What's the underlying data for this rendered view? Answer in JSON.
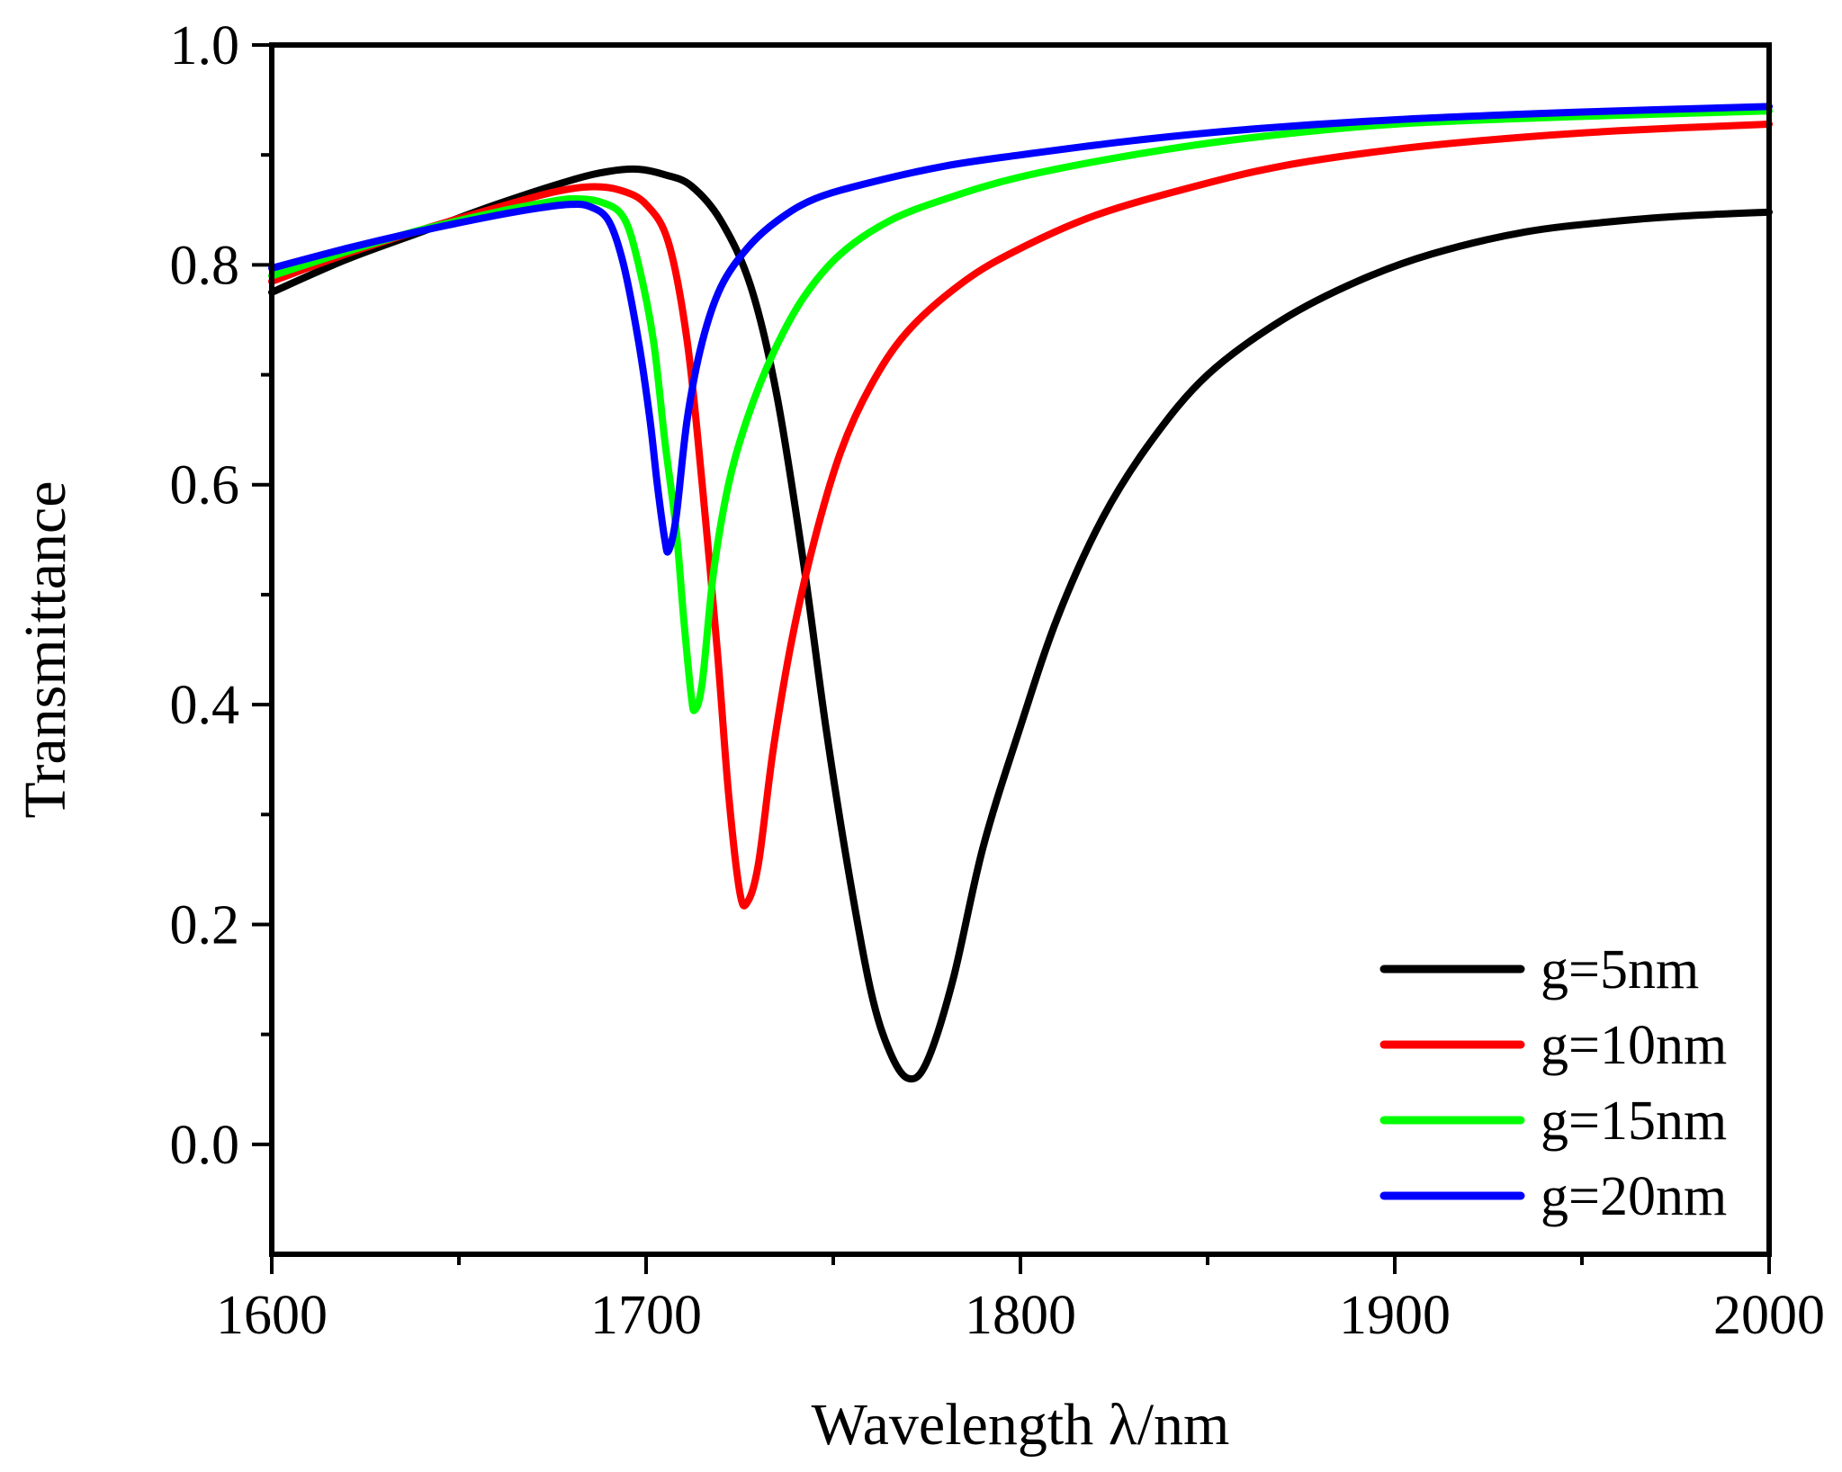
{
  "chart_data": {
    "type": "line",
    "title": "",
    "xlabel": "Wavelength λ/nm",
    "ylabel": "Transmittance",
    "xlim": [
      1600,
      2000
    ],
    "ylim": [
      -0.1,
      1.0
    ],
    "xticks": [
      1600,
      1700,
      1800,
      1900,
      2000
    ],
    "xtick_labels": [
      "1600",
      "1700",
      "1800",
      "1900",
      "2000"
    ],
    "xminor_step": 50,
    "yticks": [
      0.0,
      0.2,
      0.4,
      0.6,
      0.8,
      1.0
    ],
    "ytick_labels": [
      "0.0",
      "0.2",
      "0.4",
      "0.6",
      "0.8",
      "1.0"
    ],
    "yminor_step": 0.1,
    "grid": false,
    "legend_position": "bottom-right",
    "series": [
      {
        "name": "g=5nm",
        "color": "#000000",
        "points": [
          [
            1600,
            0.775
          ],
          [
            1620,
            0.805
          ],
          [
            1640,
            0.83
          ],
          [
            1660,
            0.855
          ],
          [
            1680,
            0.877
          ],
          [
            1690,
            0.885
          ],
          [
            1698,
            0.887
          ],
          [
            1705,
            0.882
          ],
          [
            1712,
            0.872
          ],
          [
            1720,
            0.84
          ],
          [
            1728,
            0.78
          ],
          [
            1735,
            0.68
          ],
          [
            1742,
            0.53
          ],
          [
            1748,
            0.38
          ],
          [
            1754,
            0.25
          ],
          [
            1760,
            0.14
          ],
          [
            1765,
            0.085
          ],
          [
            1770,
            0.06
          ],
          [
            1775,
            0.075
          ],
          [
            1782,
            0.15
          ],
          [
            1790,
            0.27
          ],
          [
            1800,
            0.38
          ],
          [
            1810,
            0.48
          ],
          [
            1822,
            0.57
          ],
          [
            1835,
            0.64
          ],
          [
            1850,
            0.7
          ],
          [
            1870,
            0.75
          ],
          [
            1890,
            0.785
          ],
          [
            1910,
            0.81
          ],
          [
            1935,
            0.83
          ],
          [
            1960,
            0.84
          ],
          [
            1980,
            0.845
          ],
          [
            2000,
            0.848
          ]
        ]
      },
      {
        "name": "g=10nm",
        "color": "#ff0000",
        "points": [
          [
            1600,
            0.785
          ],
          [
            1620,
            0.81
          ],
          [
            1640,
            0.832
          ],
          [
            1660,
            0.852
          ],
          [
            1675,
            0.866
          ],
          [
            1685,
            0.871
          ],
          [
            1693,
            0.868
          ],
          [
            1700,
            0.855
          ],
          [
            1706,
            0.82
          ],
          [
            1711,
            0.73
          ],
          [
            1715,
            0.6
          ],
          [
            1719,
            0.45
          ],
          [
            1722,
            0.32
          ],
          [
            1725,
            0.23
          ],
          [
            1727,
            0.22
          ],
          [
            1730,
            0.255
          ],
          [
            1734,
            0.36
          ],
          [
            1739,
            0.46
          ],
          [
            1745,
            0.55
          ],
          [
            1752,
            0.63
          ],
          [
            1760,
            0.69
          ],
          [
            1770,
            0.74
          ],
          [
            1785,
            0.785
          ],
          [
            1800,
            0.815
          ],
          [
            1820,
            0.845
          ],
          [
            1845,
            0.87
          ],
          [
            1870,
            0.89
          ],
          [
            1900,
            0.905
          ],
          [
            1930,
            0.915
          ],
          [
            1960,
            0.922
          ],
          [
            2000,
            0.928
          ]
        ]
      },
      {
        "name": "g=15nm",
        "color": "#00ff00",
        "points": [
          [
            1600,
            0.79
          ],
          [
            1620,
            0.812
          ],
          [
            1640,
            0.832
          ],
          [
            1660,
            0.848
          ],
          [
            1672,
            0.856
          ],
          [
            1680,
            0.86
          ],
          [
            1688,
            0.857
          ],
          [
            1694,
            0.843
          ],
          [
            1698,
            0.8
          ],
          [
            1702,
            0.73
          ],
          [
            1705,
            0.64
          ],
          [
            1708,
            0.56
          ],
          [
            1710,
            0.48
          ],
          [
            1712,
            0.41
          ],
          [
            1713,
            0.395
          ],
          [
            1715,
            0.42
          ],
          [
            1718,
            0.52
          ],
          [
            1722,
            0.6
          ],
          [
            1727,
            0.66
          ],
          [
            1734,
            0.72
          ],
          [
            1742,
            0.77
          ],
          [
            1752,
            0.81
          ],
          [
            1765,
            0.84
          ],
          [
            1780,
            0.86
          ],
          [
            1800,
            0.88
          ],
          [
            1830,
            0.9
          ],
          [
            1860,
            0.915
          ],
          [
            1900,
            0.928
          ],
          [
            1950,
            0.935
          ],
          [
            2000,
            0.94
          ]
        ]
      },
      {
        "name": "g=20nm",
        "color": "#0000ff",
        "points": [
          [
            1600,
            0.797
          ],
          [
            1620,
            0.815
          ],
          [
            1640,
            0.831
          ],
          [
            1660,
            0.845
          ],
          [
            1672,
            0.852
          ],
          [
            1680,
            0.855
          ],
          [
            1685,
            0.853
          ],
          [
            1690,
            0.84
          ],
          [
            1694,
            0.8
          ],
          [
            1698,
            0.73
          ],
          [
            1701,
            0.66
          ],
          [
            1703,
            0.6
          ],
          [
            1705,
            0.55
          ],
          [
            1706,
            0.54
          ],
          [
            1708,
            0.57
          ],
          [
            1711,
            0.66
          ],
          [
            1715,
            0.73
          ],
          [
            1720,
            0.78
          ],
          [
            1727,
            0.815
          ],
          [
            1735,
            0.84
          ],
          [
            1745,
            0.86
          ],
          [
            1760,
            0.875
          ],
          [
            1780,
            0.89
          ],
          [
            1800,
            0.9
          ],
          [
            1830,
            0.913
          ],
          [
            1860,
            0.923
          ],
          [
            1900,
            0.932
          ],
          [
            1950,
            0.939
          ],
          [
            2000,
            0.944
          ]
        ]
      }
    ]
  }
}
